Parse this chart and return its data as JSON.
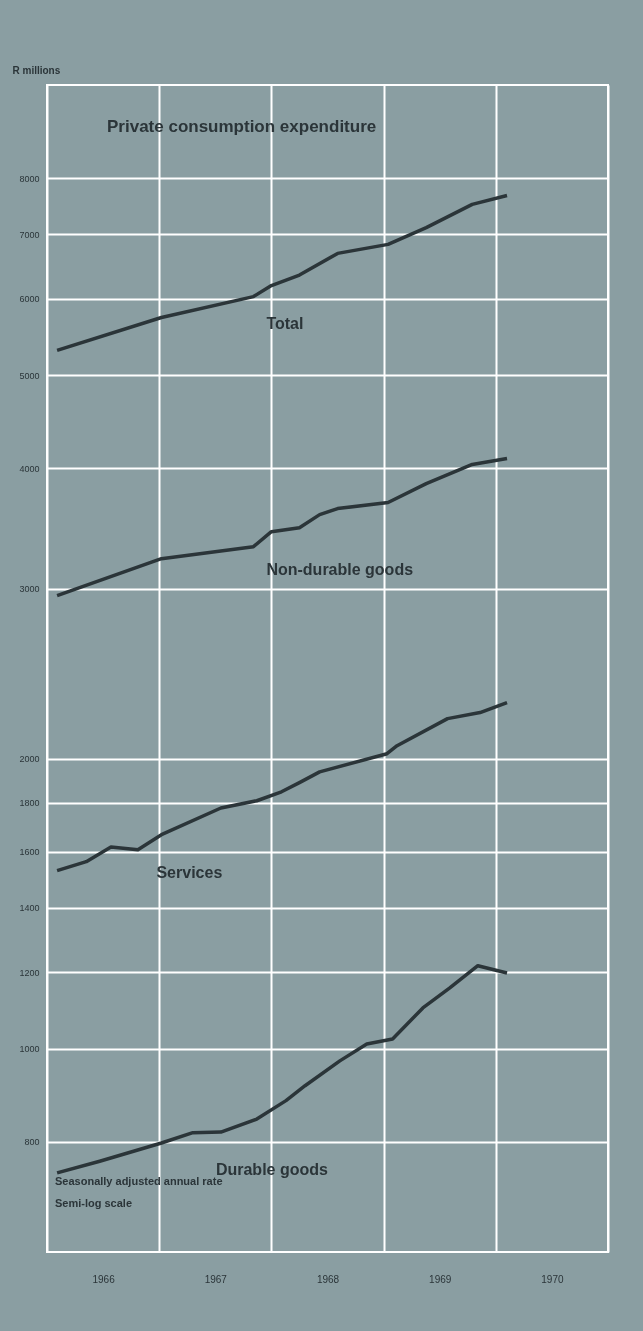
{
  "chart_data": {
    "type": "line",
    "title": "Private consumption expenditure",
    "ylabel": "R millions",
    "log": "y",
    "grid": true,
    "marker": "none",
    "line_style": "solid",
    "xlim": [
      1966,
      1971
    ],
    "ylim": [
      615,
      10000
    ],
    "xticks": [
      {
        "value": 1966,
        "label": null
      },
      {
        "value": 1966.5,
        "label": "1966"
      },
      {
        "value": 1967,
        "label": null
      },
      {
        "value": 1967.5,
        "label": "1967"
      },
      {
        "value": 1968,
        "label": null
      },
      {
        "value": 1968.5,
        "label": "1968"
      },
      {
        "value": 1969,
        "label": null
      },
      {
        "value": 1969.5,
        "label": "1969"
      },
      {
        "value": 1970,
        "label": null
      },
      {
        "value": 1970.5,
        "label": "1970"
      },
      {
        "value": 1971,
        "label": null
      }
    ],
    "yticks": [
      800,
      1000,
      1200,
      1400,
      1600,
      1800,
      2000,
      3000,
      4000,
      5000,
      6000,
      7000,
      8000
    ],
    "series": [
      {
        "name": "Total",
        "color": "#2b3539",
        "x": [
          1966.09,
          1967.02,
          1967.84,
          1968.0,
          1968.25,
          1968.59,
          1969.04,
          1969.38,
          1969.79,
          1970.1
        ],
        "values": [
          5304,
          5737,
          6031,
          6193,
          6350,
          6687,
          6833,
          7112,
          7518,
          7680
        ]
      },
      {
        "name": "Non-durable goods",
        "color": "#2b3539",
        "x": [
          1966.09,
          1967.02,
          1967.84,
          1968.0,
          1968.25,
          1968.43,
          1968.59,
          1969.04,
          1969.38,
          1969.79,
          1970.1
        ],
        "values": [
          2952,
          3224,
          3318,
          3439,
          3472,
          3582,
          3634,
          3687,
          3858,
          4038,
          4096
        ]
      },
      {
        "name": "Services",
        "color": "#2b3539",
        "x": [
          1966.09,
          1966.35,
          1966.57,
          1966.81,
          1967.02,
          1967.55,
          1967.87,
          1968.09,
          1968.25,
          1968.43,
          1969.03,
          1969.12,
          1969.57,
          1969.86,
          1970.1
        ],
        "values": [
          1530,
          1563,
          1619,
          1608,
          1667,
          1777,
          1808,
          1847,
          1888,
          1937,
          2023,
          2062,
          2200,
          2232,
          2286
        ]
      },
      {
        "name": "Durable goods",
        "color": "#2b3539",
        "x": [
          1966.09,
          1966.47,
          1967.02,
          1967.3,
          1967.55,
          1967.87,
          1968.13,
          1968.3,
          1968.61,
          1968.85,
          1969.08,
          1969.35,
          1969.59,
          1969.84,
          1970.1
        ],
        "values": [
          743,
          764,
          798,
          818,
          819,
          845,
          883,
          915,
          971,
          1011,
          1023,
          1102,
          1156,
          1219,
          1198
        ]
      }
    ],
    "annotations": [
      "Seasonally adjusted annual rate",
      "Semi-log scale"
    ]
  }
}
